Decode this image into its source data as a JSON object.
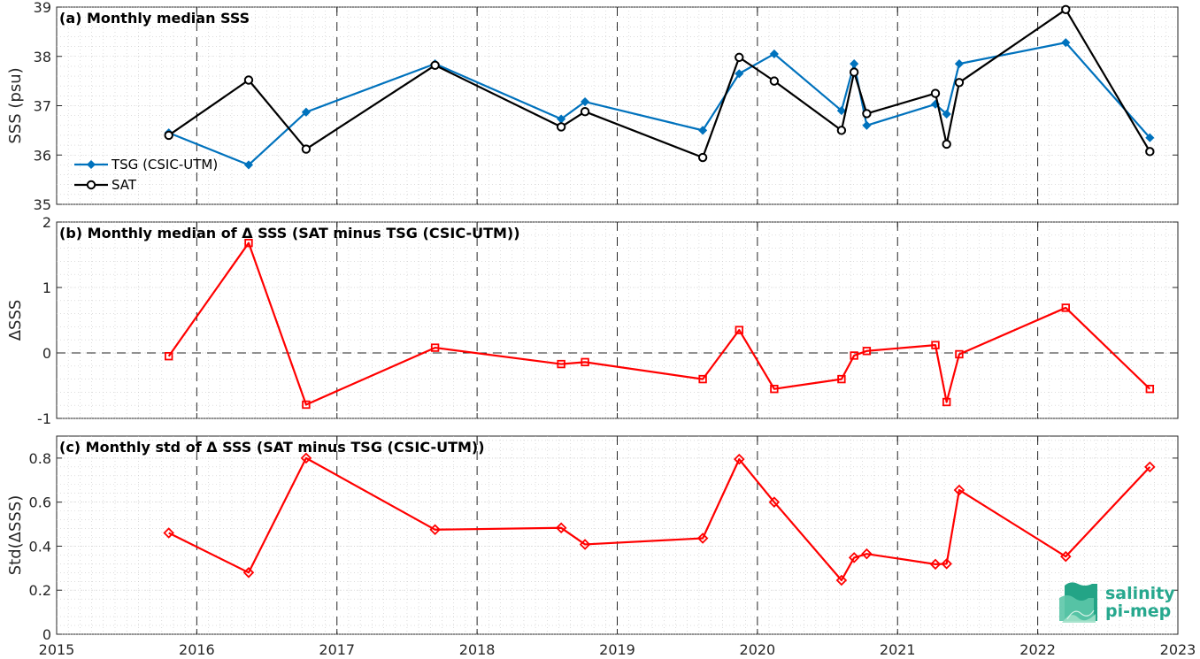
{
  "chart_data": [
    {
      "type": "line",
      "title": "(a) Monthly median SSS",
      "xlabel": "",
      "ylabel": "SSS (psu)",
      "xlim": [
        2015,
        2023
      ],
      "ylim": [
        35,
        39
      ],
      "yticks": [
        35,
        36,
        37,
        38,
        39
      ],
      "grid": true,
      "legend_position": "left",
      "series": [
        {
          "name": "TSG (CSIC-UTM)",
          "color": "#0072bd",
          "marker": "diamond",
          "x": [
            2015.8,
            2016.37,
            2016.78,
            2017.7,
            2018.6,
            2018.77,
            2019.61,
            2019.87,
            2020.12,
            2020.6,
            2020.69,
            2020.78,
            2021.27,
            2021.35,
            2021.44,
            2022.2,
            2022.8
          ],
          "y": [
            36.45,
            35.8,
            36.87,
            37.85,
            36.73,
            37.08,
            36.5,
            37.65,
            38.05,
            36.9,
            37.85,
            36.6,
            37.03,
            36.83,
            37.85,
            38.28,
            36.35
          ]
        },
        {
          "name": "SAT",
          "color": "#000000",
          "marker": "circle",
          "x": [
            2015.8,
            2016.37,
            2016.78,
            2017.7,
            2018.6,
            2018.77,
            2019.61,
            2019.87,
            2020.12,
            2020.6,
            2020.69,
            2020.78,
            2021.27,
            2021.35,
            2021.44,
            2022.2,
            2022.8
          ],
          "y": [
            36.4,
            37.52,
            36.12,
            37.82,
            36.57,
            36.88,
            35.95,
            37.98,
            37.5,
            36.5,
            37.68,
            36.84,
            37.25,
            36.22,
            37.47,
            38.95,
            36.07
          ]
        }
      ]
    },
    {
      "type": "line",
      "title": "(b) Monthly median of Δ SSS (SAT minus TSG (CSIC-UTM))",
      "xlabel": "",
      "ylabel": "ΔSSS",
      "xlim": [
        2015,
        2023
      ],
      "ylim": [
        -1,
        2
      ],
      "yticks": [
        -1,
        0,
        1,
        2
      ],
      "grid": true,
      "series": [
        {
          "name": "",
          "color": "#ff0000",
          "marker": "square",
          "x": [
            2015.8,
            2016.37,
            2016.78,
            2017.7,
            2018.6,
            2018.77,
            2019.61,
            2019.87,
            2020.12,
            2020.6,
            2020.69,
            2020.78,
            2021.27,
            2021.35,
            2021.44,
            2022.2,
            2022.8
          ],
          "y": [
            -0.05,
            1.68,
            -0.79,
            0.08,
            -0.17,
            -0.14,
            -0.4,
            0.35,
            -0.55,
            -0.4,
            -0.04,
            0.03,
            0.12,
            -0.75,
            -0.02,
            0.69,
            -0.55
          ]
        }
      ]
    },
    {
      "type": "line",
      "title": "(c) Monthly std of Δ SSS (SAT minus TSG (CSIC-UTM))",
      "xlabel": "",
      "ylabel": "Std(ΔSSS)",
      "xlim": [
        2015,
        2023
      ],
      "ylim": [
        0,
        0.9
      ],
      "yticks": [
        0,
        0.2,
        0.4,
        0.6,
        0.8
      ],
      "xticks": [
        2015,
        2016,
        2017,
        2018,
        2019,
        2020,
        2021,
        2022,
        2023
      ],
      "grid": true,
      "series": [
        {
          "name": "",
          "color": "#ff0000",
          "marker": "diamond",
          "x": [
            2015.8,
            2016.37,
            2016.78,
            2017.7,
            2018.6,
            2018.77,
            2019.61,
            2019.87,
            2020.12,
            2020.6,
            2020.69,
            2020.78,
            2021.27,
            2021.35,
            2021.44,
            2022.2,
            2022.8
          ],
          "y": [
            0.46,
            0.28,
            0.8,
            0.475,
            0.483,
            0.408,
            0.436,
            0.795,
            0.6,
            0.245,
            0.348,
            0.365,
            0.318,
            0.32,
            0.655,
            0.353,
            0.76
          ]
        }
      ]
    }
  ],
  "logo": {
    "line1": "salinity",
    "line2": "pi-mep"
  }
}
